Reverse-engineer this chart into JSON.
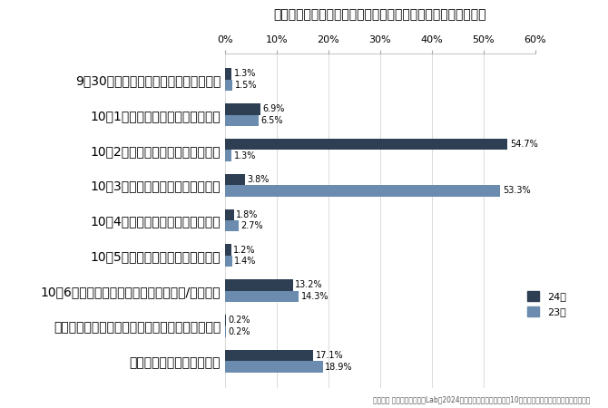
{
  "title": "内定式に参加したか（内定自体で内定式不参加の学生を除く）",
  "categories": [
    "9月30日以前に内定式があって参加した",
    "10月1日に内定式があって参加した",
    "10月2日に内定式があって参加した",
    "10月3日に内定式があって参加した",
    "10月4日に内定式があって参加した",
    "10月5日に内定式があって参加した",
    "10月6日以降に内定式があって参加した/参加予定",
    "開催日や時間が異なる複数社の内定式に参加した",
    "内定式は開催されなかった"
  ],
  "values_24": [
    1.3,
    6.9,
    54.7,
    3.8,
    1.8,
    1.2,
    13.2,
    0.2,
    17.1
  ],
  "values_23": [
    1.5,
    6.5,
    1.3,
    53.3,
    2.7,
    1.4,
    14.3,
    0.2,
    18.9
  ],
  "color_24": "#2e3f54",
  "color_23": "#6b8cae",
  "legend_24": "24卒",
  "legend_23": "23卒",
  "xlim": [
    0,
    60
  ],
  "xticks": [
    0,
    10,
    20,
    30,
    40,
    50,
    60
  ],
  "footnote": "マイナビ キャリアリサーチLab「2024年卒大学生活動実態調査（10月中旬）」より弊社にてグラフを作成",
  "background_color": "#ffffff"
}
